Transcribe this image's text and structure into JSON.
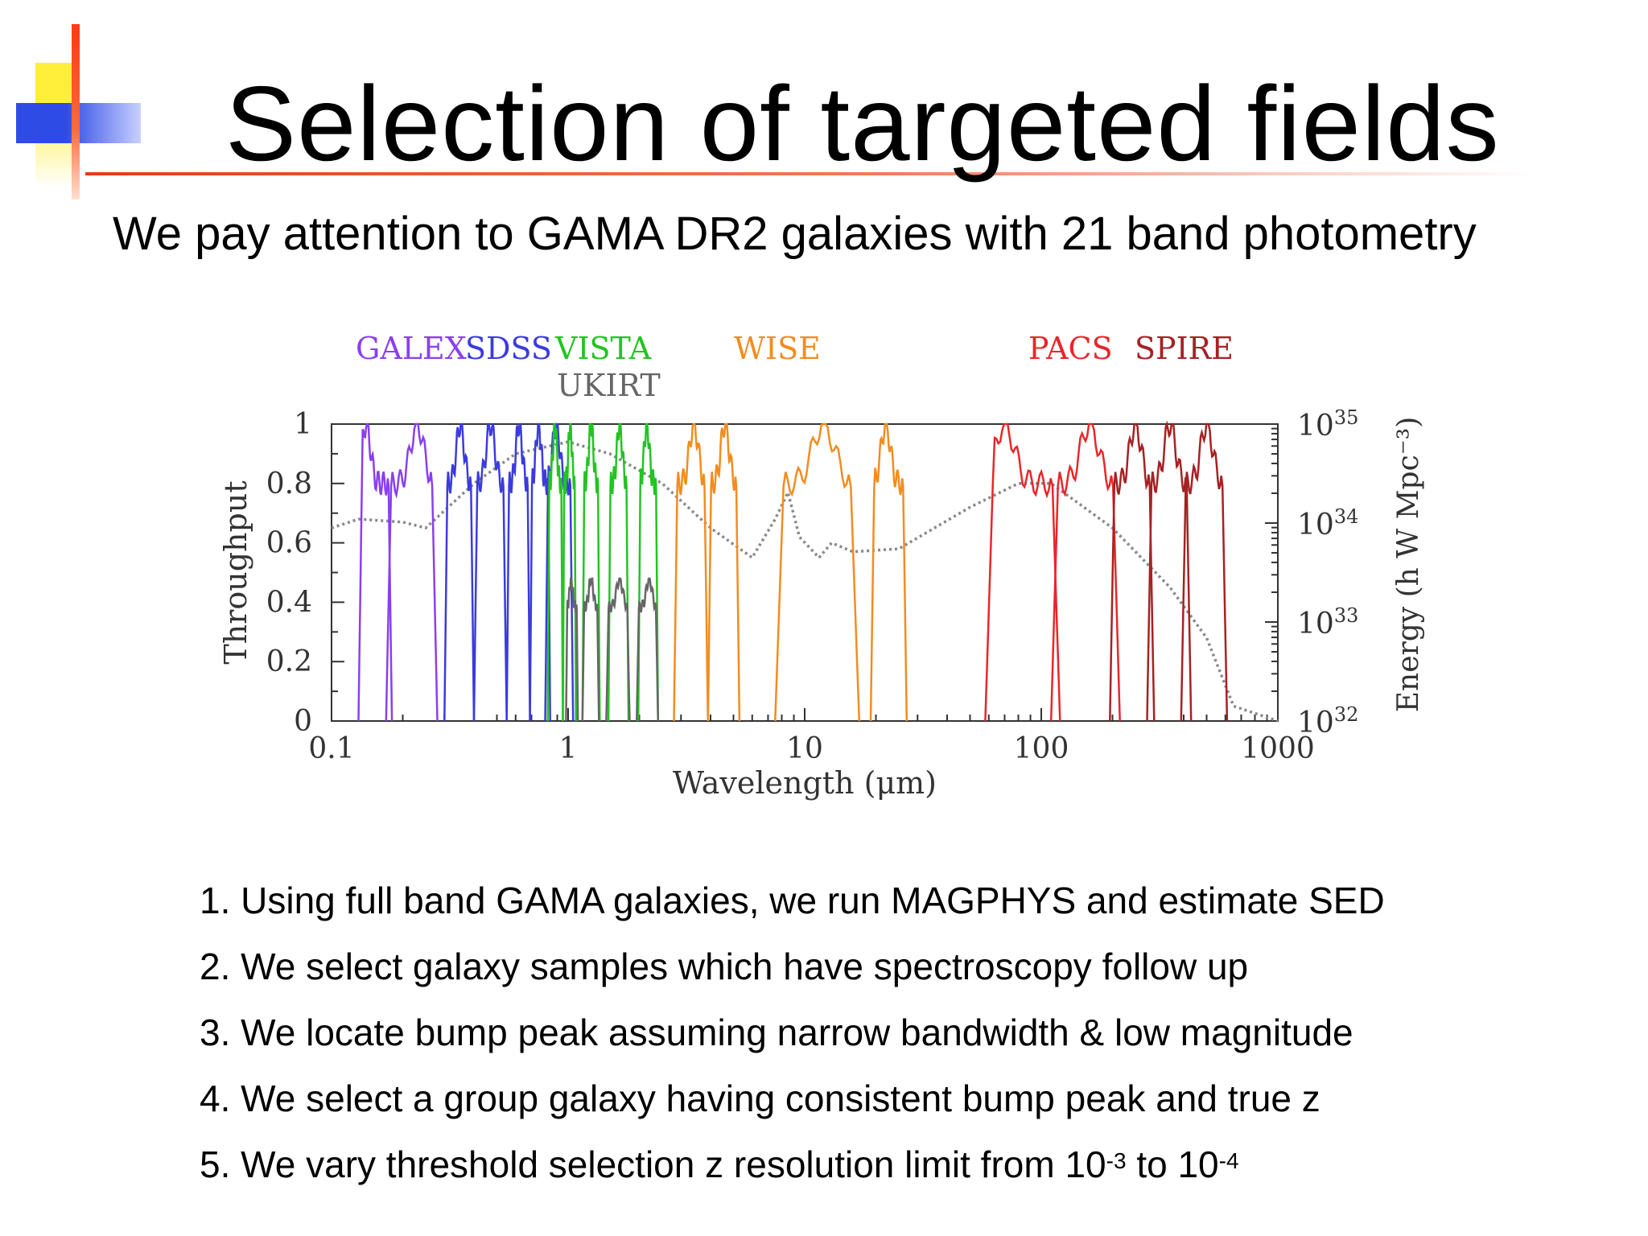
{
  "slide": {
    "title": "Selection of targeted fields",
    "subtitle": "We pay attention to GAMA DR2 galaxies with 21 band photometry",
    "steps": [
      {
        "number": "1.",
        "text": "Using full band GAMA galaxies, we run MAGPHYS and estimate SED"
      },
      {
        "number": "2.",
        "text": "We select galaxy samples which have spectroscopy follow up"
      },
      {
        "number": "3.",
        "text": "We locate bump peak assuming narrow bandwidth & low magnitude"
      },
      {
        "number": "4.",
        "text": "We select a group galaxy having consistent bump peak and true z"
      },
      {
        "number": "5.",
        "text": "We vary threshold selection z resolution limit from 10",
        "sup1": "-3",
        "mid": " to 10",
        "sup2": "-4"
      }
    ],
    "colors": {
      "title_bar": "#e8391e",
      "deco_yellow": "#ffee33",
      "deco_blue": "#2f4be6"
    }
  },
  "chart_data": {
    "type": "line",
    "xlabel": "Wavelength (μm)",
    "ylabel": "Throughput",
    "y2label": "Energy (h W Mpc⁻³)",
    "xscale": "log",
    "xlim": [
      0.1,
      1000
    ],
    "ylim": [
      0,
      1
    ],
    "x_ticks": [
      "0.1",
      "1",
      "10",
      "100",
      "1000"
    ],
    "y_ticks": [
      "0",
      "0.2",
      "0.4",
      "0.6",
      "0.8",
      "1"
    ],
    "y2_ticks": [
      {
        "base": "10",
        "exp": "32"
      },
      {
        "base": "10",
        "exp": "33"
      },
      {
        "base": "10",
        "exp": "34"
      },
      {
        "base": "10",
        "exp": "35"
      }
    ],
    "y2scale": "log",
    "y2lim": [
      1e+32,
      1e+35
    ],
    "legend": [
      {
        "name": "GALEX",
        "color": "#8a3ff0"
      },
      {
        "name": "SDSS",
        "color": "#3b3bde"
      },
      {
        "name": "VISTA",
        "color": "#22c422"
      },
      {
        "name": "UKIRT",
        "color": "#666666"
      },
      {
        "name": "WISE",
        "color": "#f28c1e"
      },
      {
        "name": "PACS",
        "color": "#e8262a"
      },
      {
        "name": "SPIRE",
        "color": "#a52224"
      }
    ],
    "series": [
      {
        "name": "GALEX",
        "color": "#8a3ff0",
        "bands": [
          {
            "lo": 0.13,
            "hi": 0.18,
            "peak": 0.14,
            "amp": 1.0
          },
          {
            "lo": 0.17,
            "hi": 0.28,
            "peak": 0.23,
            "amp": 1.0
          }
        ]
      },
      {
        "name": "SDSS",
        "color": "#3b3bde",
        "bands": [
          {
            "lo": 0.3,
            "hi": 0.4,
            "peak": 0.35,
            "amp": 1.0
          },
          {
            "lo": 0.4,
            "hi": 0.55,
            "peak": 0.47,
            "amp": 1.0
          },
          {
            "lo": 0.55,
            "hi": 0.69,
            "peak": 0.62,
            "amp": 1.0
          },
          {
            "lo": 0.69,
            "hi": 0.84,
            "peak": 0.75,
            "amp": 1.0
          },
          {
            "lo": 0.8,
            "hi": 1.05,
            "peak": 0.89,
            "amp": 1.0
          }
        ]
      },
      {
        "name": "VISTA",
        "color": "#22c422",
        "bands": [
          {
            "lo": 0.82,
            "hi": 0.95,
            "peak": 0.88,
            "amp": 1.0
          },
          {
            "lo": 0.95,
            "hi": 1.08,
            "peak": 1.02,
            "amp": 1.0
          },
          {
            "lo": 1.15,
            "hi": 1.36,
            "peak": 1.25,
            "amp": 1.0
          },
          {
            "lo": 1.48,
            "hi": 1.8,
            "peak": 1.65,
            "amp": 1.0
          },
          {
            "lo": 1.98,
            "hi": 2.4,
            "peak": 2.15,
            "amp": 1.0
          }
        ]
      },
      {
        "name": "UKIRT",
        "color": "#666666",
        "bands": [
          {
            "lo": 0.98,
            "hi": 1.1,
            "peak": 1.03,
            "amp": 0.48
          },
          {
            "lo": 1.15,
            "hi": 1.35,
            "peak": 1.25,
            "amp": 0.48
          },
          {
            "lo": 1.45,
            "hi": 1.82,
            "peak": 1.65,
            "amp": 0.48
          },
          {
            "lo": 1.95,
            "hi": 2.4,
            "peak": 2.2,
            "amp": 0.48
          }
        ]
      },
      {
        "name": "WISE",
        "color": "#f28c1e",
        "bands": [
          {
            "lo": 2.8,
            "hi": 3.9,
            "peak": 3.4,
            "amp": 1.0
          },
          {
            "lo": 3.9,
            "hi": 5.3,
            "peak": 4.6,
            "amp": 1.0
          },
          {
            "lo": 7.5,
            "hi": 17.0,
            "peak": 12.0,
            "amp": 1.0
          },
          {
            "lo": 19.0,
            "hi": 27.0,
            "peak": 22.0,
            "amp": 1.0
          }
        ]
      },
      {
        "name": "PACS",
        "color": "#e8262a",
        "bands": [
          {
            "lo": 58,
            "hi": 120,
            "peak": 70,
            "amp": 1.0
          },
          {
            "lo": 110,
            "hi": 215,
            "peak": 160,
            "amp": 1.0
          }
        ]
      },
      {
        "name": "SPIRE",
        "color": "#a52224",
        "bands": [
          {
            "lo": 195,
            "hi": 300,
            "peak": 250,
            "amp": 1.0
          },
          {
            "lo": 280,
            "hi": 430,
            "peak": 350,
            "amp": 1.0
          },
          {
            "lo": 390,
            "hi": 610,
            "peak": 500,
            "amp": 1.0
          }
        ]
      },
      {
        "name": "SED",
        "style": "dotted",
        "color": "#888888",
        "x": [
          0.1,
          0.13,
          0.2,
          0.25,
          0.4,
          0.6,
          1.0,
          1.5,
          2.5,
          4,
          6,
          7.5,
          8.5,
          9.5,
          11.5,
          13,
          16,
          25,
          50,
          80,
          110,
          200,
          350,
          500,
          650,
          1000
        ],
        "y": [
          0.65,
          0.68,
          0.67,
          0.65,
          0.8,
          0.9,
          0.94,
          0.9,
          0.8,
          0.65,
          0.55,
          0.68,
          0.77,
          0.62,
          0.55,
          0.6,
          0.57,
          0.58,
          0.72,
          0.8,
          0.8,
          0.65,
          0.45,
          0.28,
          0.05,
          0.0
        ]
      }
    ]
  }
}
